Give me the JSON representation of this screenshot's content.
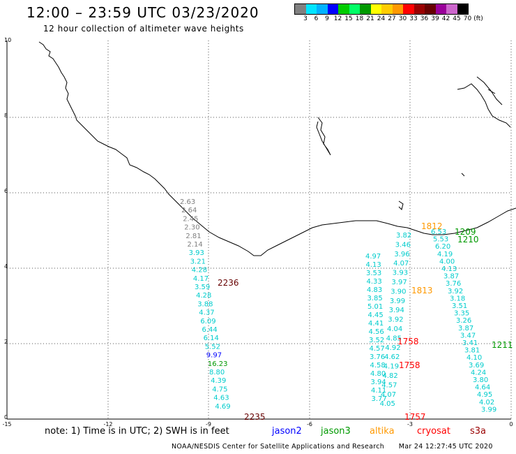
{
  "header": {
    "title": "12:00 – 23:59 UTC 03/23/2020",
    "subtitle": "12 hour collection of altimeter wave heights"
  },
  "colorbar": {
    "colors": [
      "#808080",
      "#00e5ff",
      "#00b2ff",
      "#0000ff",
      "#00cc00",
      "#00ff66",
      "#009900",
      "#ffff00",
      "#ffcc00",
      "#ff9900",
      "#ff0000",
      "#990000",
      "#660000",
      "#990099",
      "#cc66cc",
      "#000000"
    ],
    "labels": [
      "3",
      "6",
      "9",
      "12",
      "15",
      "18",
      "21",
      "24",
      "27",
      "30",
      "33",
      "36",
      "39",
      "42",
      "45",
      "70",
      "(ft)"
    ]
  },
  "axes": {
    "x_ticks": [
      "-15",
      "-12",
      "-9",
      "-6",
      "-3",
      "0"
    ],
    "y_ticks": [
      "10",
      "8",
      "6",
      "4",
      "2",
      "0"
    ]
  },
  "tracks": {
    "track_2236": {
      "time": "2236",
      "time2": "2235",
      "values": [
        "2.63",
        "2.64",
        "2.45",
        "2.30",
        "2.81",
        "2.14",
        "3.93",
        "3.21",
        "4.28",
        "4.17",
        "3.59",
        "4.28",
        "3.88",
        "4.37",
        "6.09",
        "6.44",
        "6.14",
        "5.52",
        "9.97",
        "16.23",
        "8.80",
        "4.39",
        "4.75",
        "4.63",
        "4.69"
      ],
      "colors": [
        "#808080",
        "#808080",
        "#808080",
        "#808080",
        "#808080",
        "#808080",
        "#00cccc",
        "#00cccc",
        "#00cccc",
        "#00cccc",
        "#00cccc",
        "#00cccc",
        "#00cccc",
        "#00cccc",
        "#00cccc",
        "#00cccc",
        "#00cccc",
        "#00cccc",
        "#0000ff",
        "#009900",
        "#00cccc",
        "#00cccc",
        "#00cccc",
        "#00cccc",
        "#00cccc"
      ]
    },
    "track_1758": {
      "time_top": "1758",
      "time_mid": "1758",
      "time_bottom": "1757",
      "col_a": [
        "4.97",
        "4.13",
        "3.53",
        "4.33",
        "4.83",
        "3.85",
        "5.01",
        "4.45",
        "4.41",
        "4.56",
        "3.52",
        "4.57",
        "3.76",
        "4.58",
        "4.80",
        "3.94",
        "4.11",
        "3.77"
      ],
      "col_b": [
        "3.82",
        "3.46",
        "3.96",
        "4.07",
        "3.93",
        "3.97",
        "3.90",
        "3.99",
        "3.94",
        "3.92",
        "4.04",
        "4.85",
        "4.92",
        "4.62",
        "4.19",
        "4.82",
        "4.57",
        "4.07",
        "4.05"
      ]
    },
    "track_1813": {
      "time_top": "1812",
      "time_mid": "1813",
      "values": [
        "6.53",
        "5.53",
        "6.20",
        "4.19",
        "4.00",
        "4.13",
        "3.87",
        "3.76",
        "3.92",
        "3.18",
        "3.51",
        "3.35",
        "3.26",
        "3.87",
        "3.47",
        "3.41",
        "3.81",
        "4.10",
        "3.69",
        "4.24",
        "3.80",
        "4.64",
        "4.95",
        "4.02",
        "3.99"
      ]
    },
    "track_1209": {
      "time_a": "1209",
      "time_b": "1210",
      "time_c": "1211"
    }
  },
  "legend": {
    "note": "note:  1) Time is in UTC;  2) SWH is in feet",
    "jason2": "jason2",
    "jason3": "jason3",
    "altika": "altika",
    "cryosat": "cryosat",
    "s3a": "s3a",
    "colors": {
      "jason2": "#0000ff",
      "jason3": "#009900",
      "altika": "#ff9900",
      "cryosat": "#ff0000",
      "s3a": "#990000"
    }
  },
  "footer": {
    "credit": "NOAA/NESDIS Center for Satellite Applications and Research",
    "timestamp": "Mar 24 12:27:45 UTC 2020"
  }
}
